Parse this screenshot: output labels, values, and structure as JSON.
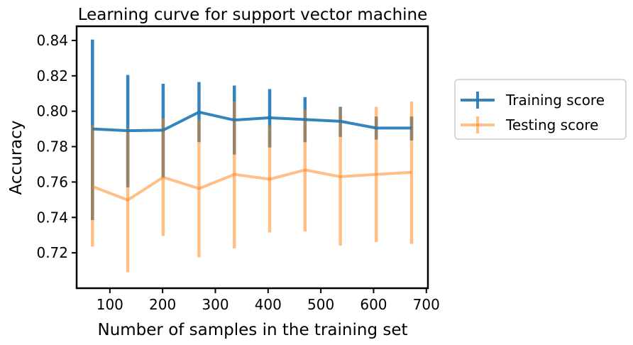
{
  "chart_data": {
    "type": "line",
    "title": "Learning curve for support vector machine",
    "xlabel": "Number of samples in the training set",
    "ylabel": "Accuracy",
    "xlim": [
      37,
      703
    ],
    "ylim": [
      0.7,
      0.848
    ],
    "xticks": [
      100,
      200,
      300,
      400,
      500,
      600,
      700
    ],
    "yticks": [
      0.72,
      0.74,
      0.76,
      0.78,
      0.8,
      0.82,
      0.84
    ],
    "grid": false,
    "legend_position": "outside-right",
    "x": [
      67,
      134,
      201,
      269,
      336,
      403,
      470,
      537,
      605,
      672
    ],
    "series": [
      {
        "name": "Training score",
        "color": "#1f77b4",
        "alpha": 0.9,
        "values": [
          0.79,
          0.789,
          0.7893,
          0.7995,
          0.795,
          0.7963,
          0.7953,
          0.7943,
          0.7905,
          0.7905
        ],
        "err_low": [
          0.7385,
          0.757,
          0.7625,
          0.7825,
          0.7755,
          0.7795,
          0.7825,
          0.7855,
          0.784,
          0.7835
        ],
        "err_high": [
          0.8405,
          0.8205,
          0.8155,
          0.8165,
          0.8145,
          0.8125,
          0.808,
          0.8025,
          0.797,
          0.797
        ]
      },
      {
        "name": "Testing score",
        "color": "#ff7f0e",
        "alpha": 0.5,
        "values": [
          0.7575,
          0.7498,
          0.7627,
          0.7563,
          0.7643,
          0.7616,
          0.7668,
          0.763,
          0.7643,
          0.7655
        ],
        "err_low": [
          0.7235,
          0.709,
          0.7295,
          0.7175,
          0.7225,
          0.7315,
          0.732,
          0.724,
          0.726,
          0.725
        ],
        "err_high": [
          0.792,
          0.7905,
          0.796,
          0.795,
          0.8055,
          0.792,
          0.801,
          0.802,
          0.8025,
          0.8055
        ]
      }
    ]
  }
}
